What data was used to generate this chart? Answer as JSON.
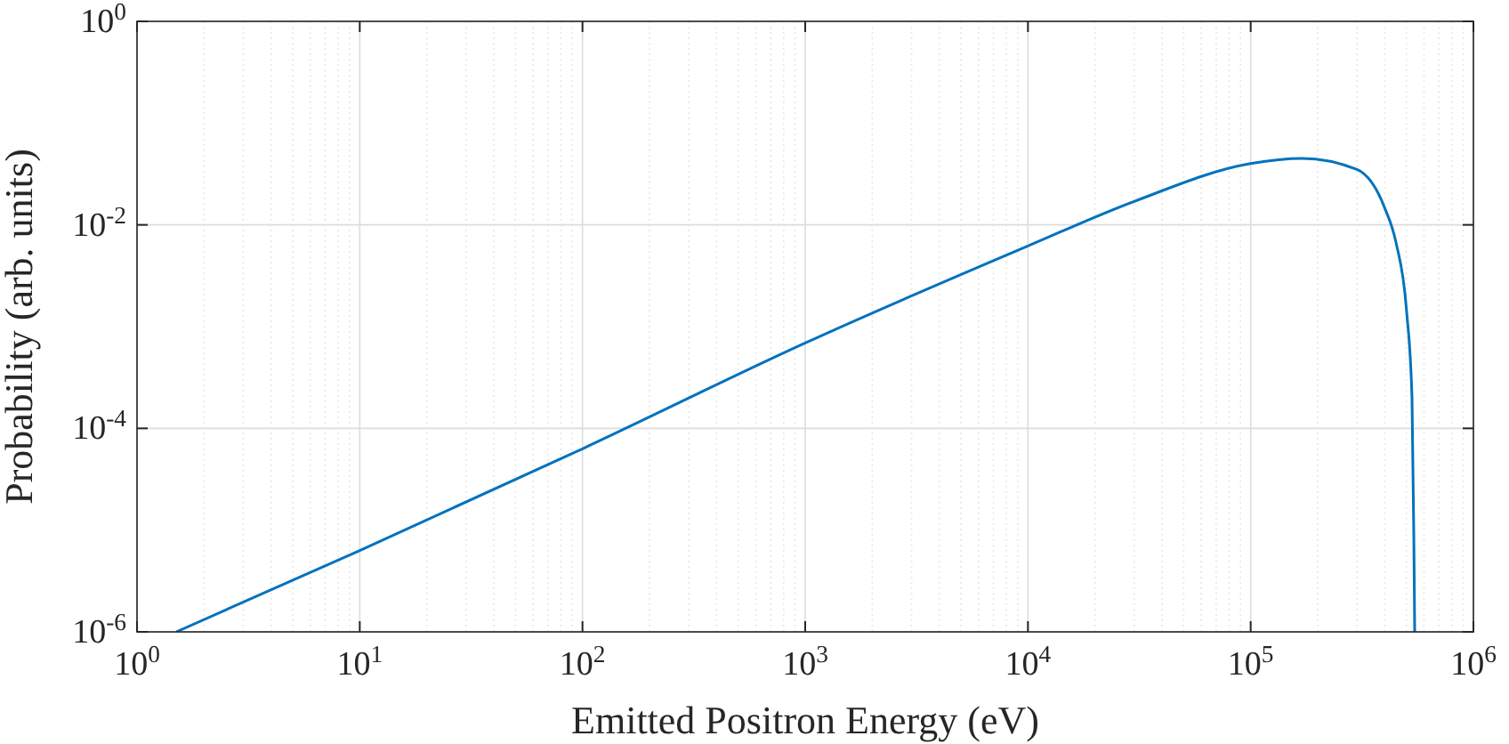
{
  "chart_data": {
    "type": "line",
    "xlabel": "Emitted Positron Energy (eV)",
    "ylabel": "Probability (arb. units)",
    "log": "xy",
    "grid": true,
    "xlim": [
      1,
      1000000
    ],
    "ylim": [
      1e-06,
      1
    ],
    "xticks": [
      {
        "value": 1,
        "label": "10$^{0}$"
      },
      {
        "value": 10,
        "label": "10$^{1}$"
      },
      {
        "value": 100,
        "label": "10$^{2}$"
      },
      {
        "value": 1000,
        "label": "10$^{3}$"
      },
      {
        "value": 10000,
        "label": "10$^{4}$"
      },
      {
        "value": 100000,
        "label": "10$^{5}$"
      },
      {
        "value": 1000000,
        "label": "10$^{6}$"
      }
    ],
    "yticks": [
      {
        "value": 1e-06,
        "label": "10$^{-6}$"
      },
      {
        "value": 0.0001,
        "label": "10$^{-4}$"
      },
      {
        "value": 0.01,
        "label": "10$^{-2}$"
      },
      {
        "value": 1,
        "label": "10$^{0}$"
      }
    ],
    "series": [
      {
        "color": "#0072bd",
        "x": [
          1.5,
          10,
          100,
          1000,
          10000,
          30000,
          100000,
          170000,
          300000,
          400000,
          450000,
          500000,
          530000,
          540000,
          545000
        ],
        "values": [
          1e-06,
          6.3e-06,
          6.3e-05,
          0.00069,
          0.0062,
          0.017,
          0.04,
          0.045,
          0.035,
          0.0146,
          0.0066,
          0.0015,
          0.0002,
          9e-06,
          1e-06
        ]
      }
    ]
  }
}
